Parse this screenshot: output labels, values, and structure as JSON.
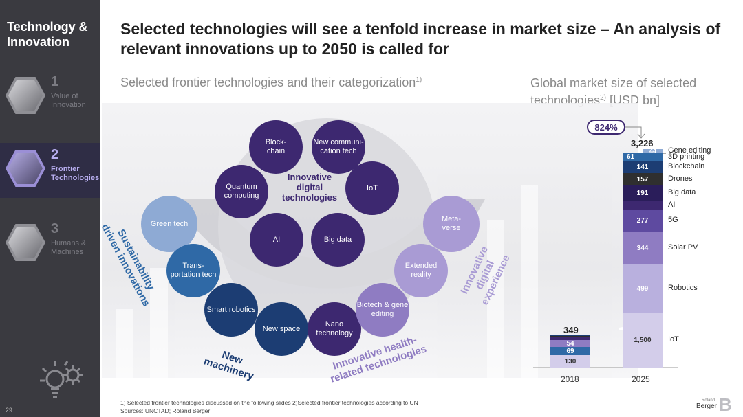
{
  "sidebar": {
    "title": "Technology & Innovation",
    "items": [
      {
        "num": "1",
        "label": "Value of Innovation"
      },
      {
        "num": "2",
        "label": "Frontier Technologies"
      },
      {
        "num": "3",
        "label": "Humans & Machines"
      }
    ],
    "page_number": "29"
  },
  "header": {
    "title": "Selected technologies will see a tenfold increase in market size – An analysis of relevant innovations up to 2050 is called for",
    "subtitle_left": "Selected frontier technologies and their categorization",
    "subtitle_left_sup": "1)",
    "subtitle_right": "Global market size of selected technologies",
    "subtitle_right_sup": "2)",
    "subtitle_right_unit": " [USD bn]"
  },
  "diagram": {
    "bubbles": {
      "blockchain": "Block-\nchain",
      "comm": "New communi-\ncation tech",
      "quantum": "Quantum computing",
      "digital_center": "Innovative digital technologies",
      "iot": "IoT",
      "ai": "AI",
      "bigdata": "Big data",
      "green": "Green tech",
      "transport": "Trans-\nportation tech",
      "robotics": "Smart robotics",
      "space": "New space",
      "nano": "Nano technology",
      "biotech": "Biotech & gene editing",
      "xr": "Extended reality",
      "metaverse": "Meta-\nverse"
    },
    "categories": {
      "sustainability": "Sustainability driven innovations",
      "machinery": "New machinery",
      "health": "Innovative health-related technologies",
      "experience": "Innovative digital experience"
    },
    "colors": {
      "dark_purple": "#3d2870",
      "navy": "#1c3d73",
      "blue": "#2f69a6",
      "light_blue": "#8eaad4",
      "lilac": "#a99bd4"
    }
  },
  "chart_data": {
    "type": "bar",
    "categories": [
      "2018",
      "2025"
    ],
    "totals": [
      "349",
      "3,226"
    ],
    "growth": "824%",
    "stack_2018": [
      {
        "value": "130",
        "color": "#d3cdea"
      },
      {
        "value": "69",
        "color": "#2f69a6"
      },
      {
        "value": "54",
        "color": "#8f7cc2"
      },
      {
        "value": "",
        "color": "#3d2870"
      },
      {
        "value": "",
        "color": "#2f2f2f"
      },
      {
        "value": "",
        "color": "#1c3d73"
      }
    ],
    "stack_2025": [
      {
        "name": "IoT",
        "value": "1,500",
        "color": "#d3cdea"
      },
      {
        "name": "Robotics",
        "value": "499",
        "color": "#b9b0de"
      },
      {
        "name": "Solar PV",
        "value": "344",
        "color": "#8f7cc2"
      },
      {
        "name": "5G",
        "value": "277",
        "color": "#5e4aa0"
      },
      {
        "name": "AI",
        "value": "",
        "color": "#3d2870"
      },
      {
        "name": "Big data",
        "value": "191",
        "color": "#2a1d5a"
      },
      {
        "name": "Drones",
        "value": "157",
        "color": "#2f2f2f"
      },
      {
        "name": "Blockchain",
        "value": "141",
        "color": "#1c3d73"
      },
      {
        "name": "3D printing",
        "value": "61",
        "color": "#2f69a6"
      },
      {
        "name": "Gene editing",
        "value": "44",
        "color": "#8eaad4"
      }
    ]
  },
  "footnote": {
    "line1": "1) Selected frontier technologies discussed on the following slides 2)Selected frontier technologies according to UN",
    "line2": "Sources: UNCTAD; Roland Berger"
  },
  "logo": {
    "small": "Roland",
    "text": "Berger"
  }
}
